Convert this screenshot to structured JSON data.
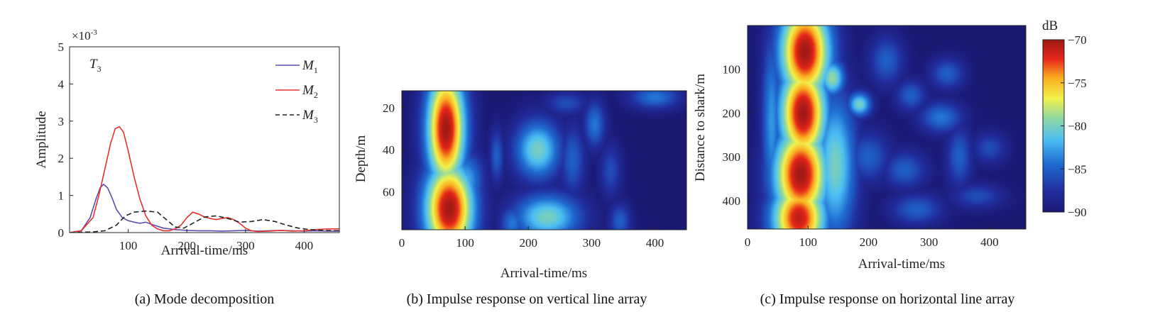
{
  "chart_data": [
    {
      "type": "line",
      "caption": "(a) Mode decomposition",
      "annotation_main": "T",
      "annotation_sub": "3",
      "exponent_label": "×10",
      "exponent_power": "-3",
      "xlabel": "Arrival-time/ms",
      "ylabel": "Amplitude",
      "xlim": [
        0,
        460
      ],
      "ylim": [
        0,
        5
      ],
      "xticks": [
        "100",
        "200",
        "300",
        "400"
      ],
      "yticks": [
        "0",
        "1",
        "2",
        "3",
        "4",
        "5"
      ],
      "legend_position": "top-right",
      "colors": {
        "M1": "#5b4fb0",
        "M2": "#e8312e",
        "M3": "#222222"
      },
      "series": [
        {
          "name": "M",
          "sub": "1",
          "style": "solid",
          "x": [
            0,
            20,
            35,
            45,
            52,
            58,
            65,
            72,
            80,
            90,
            100,
            110,
            120,
            130,
            140,
            160,
            180,
            200,
            220,
            240,
            260,
            280,
            300,
            320,
            340,
            360,
            380,
            400,
            420,
            440,
            460
          ],
          "y": [
            0,
            0.05,
            0.4,
            0.9,
            1.2,
            1.3,
            1.2,
            0.95,
            0.62,
            0.4,
            0.32,
            0.28,
            0.25,
            0.28,
            0.22,
            0.12,
            0.08,
            0.06,
            0.05,
            0.05,
            0.04,
            0.05,
            0.06,
            0.04,
            0.05,
            0.06,
            0.05,
            0.04,
            0.05,
            0.04,
            0.04
          ]
        },
        {
          "name": "M",
          "sub": "2",
          "style": "solid",
          "x": [
            0,
            20,
            40,
            50,
            60,
            70,
            78,
            85,
            92,
            100,
            110,
            120,
            130,
            140,
            150,
            160,
            170,
            180,
            190,
            200,
            210,
            220,
            230,
            240,
            250,
            260,
            270,
            280,
            290,
            300,
            310,
            320,
            340,
            360,
            380,
            400,
            420,
            440,
            460
          ],
          "y": [
            0,
            0.05,
            0.4,
            1.0,
            1.7,
            2.4,
            2.8,
            2.85,
            2.7,
            2.2,
            1.5,
            0.9,
            0.45,
            0.2,
            0.1,
            0.05,
            0.05,
            0.1,
            0.2,
            0.4,
            0.55,
            0.5,
            0.42,
            0.38,
            0.35,
            0.38,
            0.4,
            0.35,
            0.25,
            0.12,
            0.05,
            0.03,
            0.04,
            0.06,
            0.04,
            0.05,
            0.08,
            0.1,
            0.1
          ]
        },
        {
          "name": "M",
          "sub": "3",
          "style": "dashed",
          "x": [
            0,
            40,
            60,
            80,
            95,
            110,
            130,
            150,
            165,
            180,
            195,
            210,
            230,
            250,
            270,
            290,
            310,
            330,
            350,
            370,
            390,
            410,
            430,
            460
          ],
          "y": [
            0,
            0.02,
            0.05,
            0.2,
            0.45,
            0.55,
            0.58,
            0.55,
            0.35,
            0.15,
            0.12,
            0.25,
            0.42,
            0.45,
            0.38,
            0.28,
            0.3,
            0.35,
            0.3,
            0.2,
            0.12,
            0.08,
            0.06,
            0.05
          ]
        }
      ]
    },
    {
      "type": "heatmap",
      "caption": "(b) Impulse response on vertical line array",
      "xlabel": "Arrival-time/ms",
      "ylabel": "Depth/m",
      "xlim": [
        0,
        450
      ],
      "ylim": [
        12,
        78
      ],
      "xticks": [
        "0",
        "100",
        "200",
        "300",
        "400"
      ],
      "yticks": [
        "20",
        "40",
        "60"
      ],
      "background_db": -90,
      "blobs": [
        {
          "t": 70,
          "z": 30,
          "st": 22,
          "sz": 20,
          "db": -70
        },
        {
          "t": 75,
          "z": 68,
          "st": 28,
          "sz": 16,
          "db": -70
        },
        {
          "t": 100,
          "z": 55,
          "st": 20,
          "sz": 10,
          "db": -82
        },
        {
          "t": 215,
          "z": 40,
          "st": 26,
          "sz": 10,
          "db": -80
        },
        {
          "t": 230,
          "z": 72,
          "st": 38,
          "sz": 8,
          "db": -80
        },
        {
          "t": 150,
          "z": 43,
          "st": 8,
          "sz": 9,
          "db": -85
        },
        {
          "t": 175,
          "z": 75,
          "st": 14,
          "sz": 6,
          "db": -84
        },
        {
          "t": 270,
          "z": 45,
          "st": 14,
          "sz": 12,
          "db": -85
        },
        {
          "t": 305,
          "z": 28,
          "st": 12,
          "sz": 8,
          "db": -84
        },
        {
          "t": 330,
          "z": 50,
          "st": 12,
          "sz": 9,
          "db": -86
        },
        {
          "t": 345,
          "z": 74,
          "st": 12,
          "sz": 6,
          "db": -85
        },
        {
          "t": 400,
          "z": 15,
          "st": 28,
          "sz": 4,
          "db": -84
        },
        {
          "t": 260,
          "z": 18,
          "st": 24,
          "sz": 4,
          "db": -86
        }
      ]
    },
    {
      "type": "heatmap",
      "caption": "(c) Impulse response on horizontal line array",
      "xlabel": "Arrival-time/ms",
      "ylabel": "Distance to shark/m",
      "xlim": [
        0,
        460
      ],
      "ylim": [
        0,
        465
      ],
      "xticks": [
        "0",
        "100",
        "200",
        "300",
        "400"
      ],
      "yticks": [
        "100",
        "200",
        "300",
        "400"
      ],
      "background_db": -90,
      "colorbar": {
        "label": "dB",
        "ticks": [
          "-70",
          "-75",
          "-80",
          "-85",
          "-90"
        ],
        "min": -90,
        "max": -70
      },
      "blobs": [
        {
          "t": 95,
          "z": 60,
          "st": 30,
          "sz": 80,
          "db": -70
        },
        {
          "t": 92,
          "z": 200,
          "st": 28,
          "sz": 80,
          "db": -70
        },
        {
          "t": 88,
          "z": 340,
          "st": 32,
          "sz": 80,
          "db": -70
        },
        {
          "t": 85,
          "z": 440,
          "st": 32,
          "sz": 60,
          "db": -71
        },
        {
          "t": 140,
          "z": 120,
          "st": 15,
          "sz": 30,
          "db": -79
        },
        {
          "t": 145,
          "z": 320,
          "st": 25,
          "sz": 120,
          "db": -80
        },
        {
          "t": 185,
          "z": 180,
          "st": 14,
          "sz": 20,
          "db": -80
        },
        {
          "t": 40,
          "z": 220,
          "st": 12,
          "sz": 150,
          "db": -83
        },
        {
          "t": 200,
          "z": 300,
          "st": 25,
          "sz": 40,
          "db": -85
        },
        {
          "t": 230,
          "z": 80,
          "st": 20,
          "sz": 40,
          "db": -85
        },
        {
          "t": 270,
          "z": 160,
          "st": 18,
          "sz": 25,
          "db": -85
        },
        {
          "t": 320,
          "z": 210,
          "st": 25,
          "sz": 25,
          "db": -84
        },
        {
          "t": 260,
          "z": 330,
          "st": 25,
          "sz": 30,
          "db": -85
        },
        {
          "t": 330,
          "z": 110,
          "st": 20,
          "sz": 25,
          "db": -85
        },
        {
          "t": 280,
          "z": 420,
          "st": 30,
          "sz": 25,
          "db": -85
        },
        {
          "t": 400,
          "z": 280,
          "st": 20,
          "sz": 25,
          "db": -86
        },
        {
          "t": 380,
          "z": 390,
          "st": 30,
          "sz": 20,
          "db": -86
        },
        {
          "t": 350,
          "z": 300,
          "st": 15,
          "sz": 50,
          "db": -85
        }
      ]
    }
  ]
}
